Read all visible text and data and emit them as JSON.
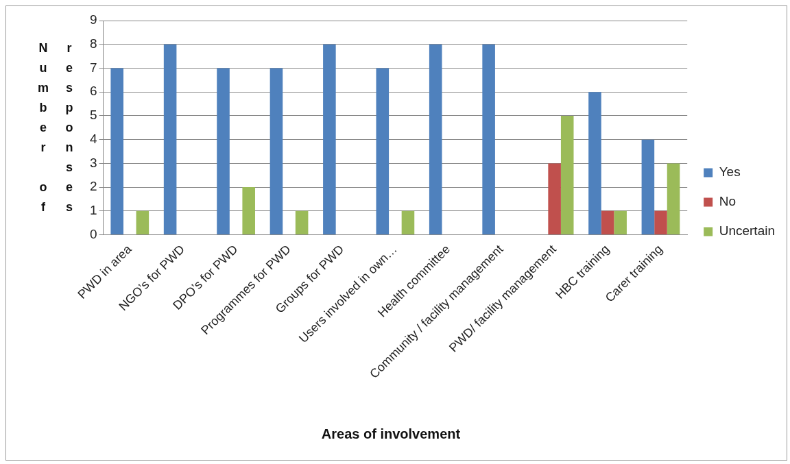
{
  "chart_data": {
    "type": "bar",
    "xlabel": "Areas of involvement",
    "ylabel": "Number of responses",
    "categories": [
      "PWD in area",
      "NGO’s for PWD",
      "DPO’s for PWD",
      "Programmes for PWD",
      "Groups for PWD",
      "Users involved in own…",
      "Health committee",
      "Community / facility management",
      "PWD/ facility management",
      "HBC training",
      "Carer training"
    ],
    "series": [
      {
        "name": "Yes",
        "color": "#4f81bd",
        "values": [
          7,
          8,
          7,
          7,
          8,
          7,
          8,
          8,
          0,
          6,
          4
        ]
      },
      {
        "name": "No",
        "color": "#c0504d",
        "values": [
          0,
          0,
          0,
          0,
          0,
          0,
          0,
          0,
          3,
          1,
          1
        ]
      },
      {
        "name": "Uncertain",
        "color": "#9bbb59",
        "values": [
          1,
          0,
          2,
          1,
          0,
          1,
          0,
          0,
          5,
          1,
          3
        ]
      }
    ],
    "ylim": [
      0,
      9
    ],
    "yticks": [
      0,
      1,
      2,
      3,
      4,
      5,
      6,
      7,
      8,
      9
    ],
    "grid": "y",
    "legend": "right"
  }
}
